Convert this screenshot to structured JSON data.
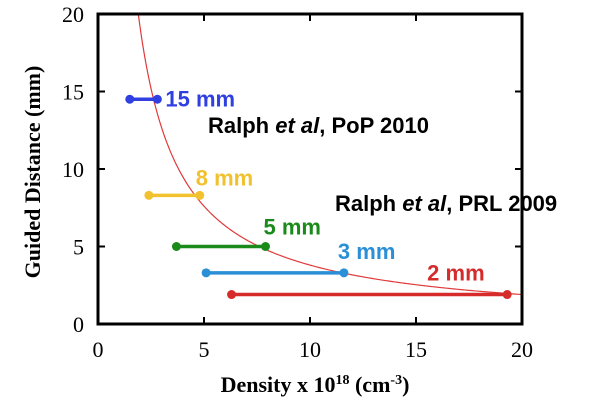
{
  "chart_data": {
    "type": "scatter",
    "xlabel_prefix": "Density x 10",
    "xlabel_exp": "18",
    "xlabel_unit_prefix": " (cm",
    "xlabel_unit_exp": "-3",
    "xlabel_unit_suffix": ")",
    "ylabel": "Guided Distance (mm)",
    "xlim": [
      0,
      20
    ],
    "ylim": [
      0,
      20
    ],
    "x_ticks": [
      0,
      5,
      10,
      15,
      20
    ],
    "y_ticks": [
      0,
      5,
      10,
      15,
      20
    ],
    "grid": false,
    "series": [
      {
        "name": "15 mm",
        "color": "#2f3fe0",
        "y": 14.5,
        "x": [
          1.5,
          2.8
        ]
      },
      {
        "name": "8 mm",
        "color": "#f2c12e",
        "y": 8.3,
        "x": [
          2.4,
          4.8
        ]
      },
      {
        "name": "5 mm",
        "color": "#1a8a1a",
        "y": 5.0,
        "x": [
          3.7,
          7.9
        ]
      },
      {
        "name": "3 mm",
        "color": "#2a8fd6",
        "y": 3.3,
        "x": [
          5.1,
          11.6
        ]
      },
      {
        "name": "2 mm",
        "color": "#d62b2b",
        "y": 1.9,
        "x": [
          6.3,
          19.3
        ]
      }
    ],
    "fit_curve": {
      "color": "#e03a3a",
      "k": 38,
      "x_range": [
        1.9,
        20
      ]
    },
    "annotations": [
      {
        "prefix": "Ralph ",
        "italic": "et al",
        "suffix": ", PoP 2010"
      },
      {
        "prefix": "Ralph ",
        "italic": "et al",
        "suffix": ", PRL 2009"
      }
    ]
  }
}
